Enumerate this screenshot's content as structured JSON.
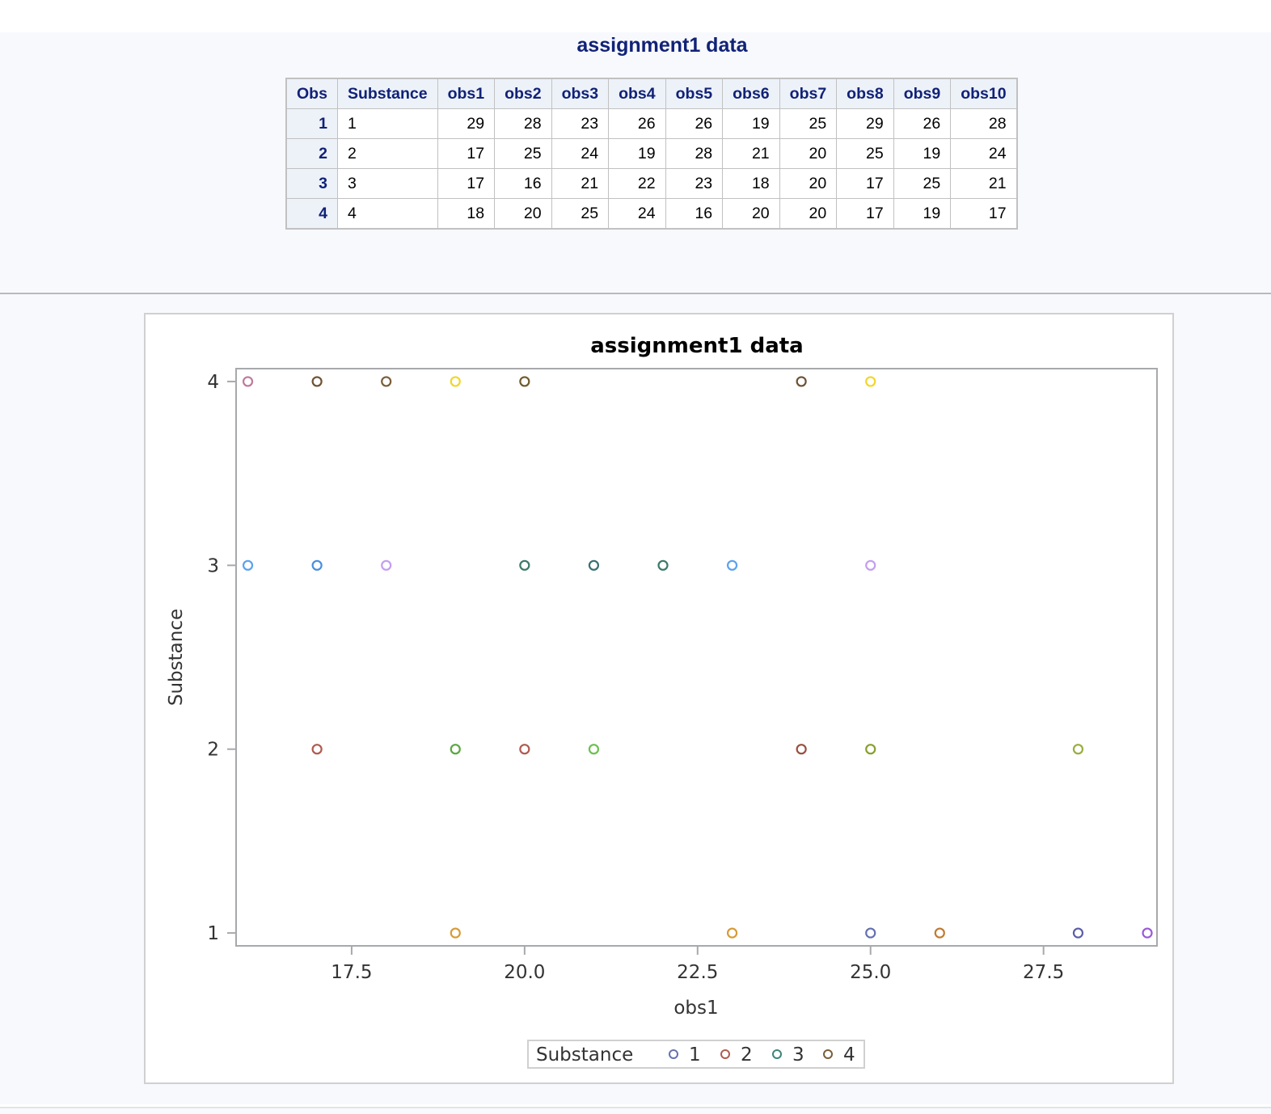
{
  "table": {
    "title": "assignment1 data",
    "columns": [
      "Obs",
      "Substance",
      "obs1",
      "obs2",
      "obs3",
      "obs4",
      "obs5",
      "obs6",
      "obs7",
      "obs8",
      "obs9",
      "obs10"
    ],
    "rows": [
      [
        "1",
        "1",
        "29",
        "28",
        "23",
        "26",
        "26",
        "19",
        "25",
        "29",
        "26",
        "28"
      ],
      [
        "2",
        "2",
        "17",
        "25",
        "24",
        "19",
        "28",
        "21",
        "20",
        "25",
        "19",
        "24"
      ],
      [
        "3",
        "3",
        "17",
        "16",
        "21",
        "22",
        "23",
        "18",
        "20",
        "17",
        "25",
        "21"
      ],
      [
        "4",
        "4",
        "18",
        "20",
        "25",
        "24",
        "16",
        "20",
        "20",
        "17",
        "19",
        "17"
      ]
    ]
  },
  "chart_data": {
    "type": "scatter",
    "title": "assignment1 data",
    "xlabel": "obs1",
    "ylabel": "Substance",
    "xlim": [
      15.83,
      29.14
    ],
    "ylim": [
      0.93,
      4.07
    ],
    "x_ticks": [
      "17.5",
      "20.0",
      "22.5",
      "25.0",
      "27.5"
    ],
    "x_tick_values": [
      17.5,
      20.0,
      22.5,
      25.0,
      27.5
    ],
    "y_ticks": [
      "1",
      "2",
      "3",
      "4"
    ],
    "y_tick_values": [
      1,
      2,
      3,
      4
    ],
    "grid": false,
    "legend": {
      "position": "bottom",
      "title": "Substance",
      "entries": [
        {
          "label": "1",
          "color": "#6670b0"
        },
        {
          "label": "2",
          "color": "#b05b50"
        },
        {
          "label": "3",
          "color": "#3b8578"
        },
        {
          "label": "4",
          "color": "#7a5e3a"
        }
      ]
    },
    "points": [
      {
        "x": 16,
        "y": 4,
        "color": "#c0799c"
      },
      {
        "x": 17,
        "y": 4,
        "color": "#6e5234"
      },
      {
        "x": 18,
        "y": 4,
        "color": "#7a5e3a"
      },
      {
        "x": 19,
        "y": 4,
        "color": "#f2d62a"
      },
      {
        "x": 20,
        "y": 4,
        "color": "#705a2a"
      },
      {
        "x": 24,
        "y": 4,
        "color": "#6e5234"
      },
      {
        "x": 25,
        "y": 4,
        "color": "#f2d62a"
      },
      {
        "x": 16,
        "y": 3,
        "color": "#5ca2ee"
      },
      {
        "x": 17,
        "y": 3,
        "color": "#4a8fe0"
      },
      {
        "x": 18,
        "y": 3,
        "color": "#c39ef0"
      },
      {
        "x": 20,
        "y": 3,
        "color": "#3b7a6a"
      },
      {
        "x": 21,
        "y": 3,
        "color": "#3a6f70"
      },
      {
        "x": 22,
        "y": 3,
        "color": "#3b7a6a"
      },
      {
        "x": 23,
        "y": 3,
        "color": "#5ca2ee"
      },
      {
        "x": 25,
        "y": 3,
        "color": "#c39ef0"
      },
      {
        "x": 17,
        "y": 2,
        "color": "#b05b50"
      },
      {
        "x": 19,
        "y": 2,
        "color": "#5aa83e"
      },
      {
        "x": 20,
        "y": 2,
        "color": "#b05b50"
      },
      {
        "x": 21,
        "y": 2,
        "color": "#6cc050"
      },
      {
        "x": 24,
        "y": 2,
        "color": "#9a5040"
      },
      {
        "x": 25,
        "y": 2,
        "color": "#88a030"
      },
      {
        "x": 28,
        "y": 2,
        "color": "#98ae40"
      },
      {
        "x": 19,
        "y": 1,
        "color": "#d89a35"
      },
      {
        "x": 23,
        "y": 1,
        "color": "#d89a35"
      },
      {
        "x": 25,
        "y": 1,
        "color": "#6670b0"
      },
      {
        "x": 26,
        "y": 1,
        "color": "#c07a30"
      },
      {
        "x": 28,
        "y": 1,
        "color": "#5a5ea8"
      },
      {
        "x": 29,
        "y": 1,
        "color": "#9a5ad8"
      }
    ]
  }
}
